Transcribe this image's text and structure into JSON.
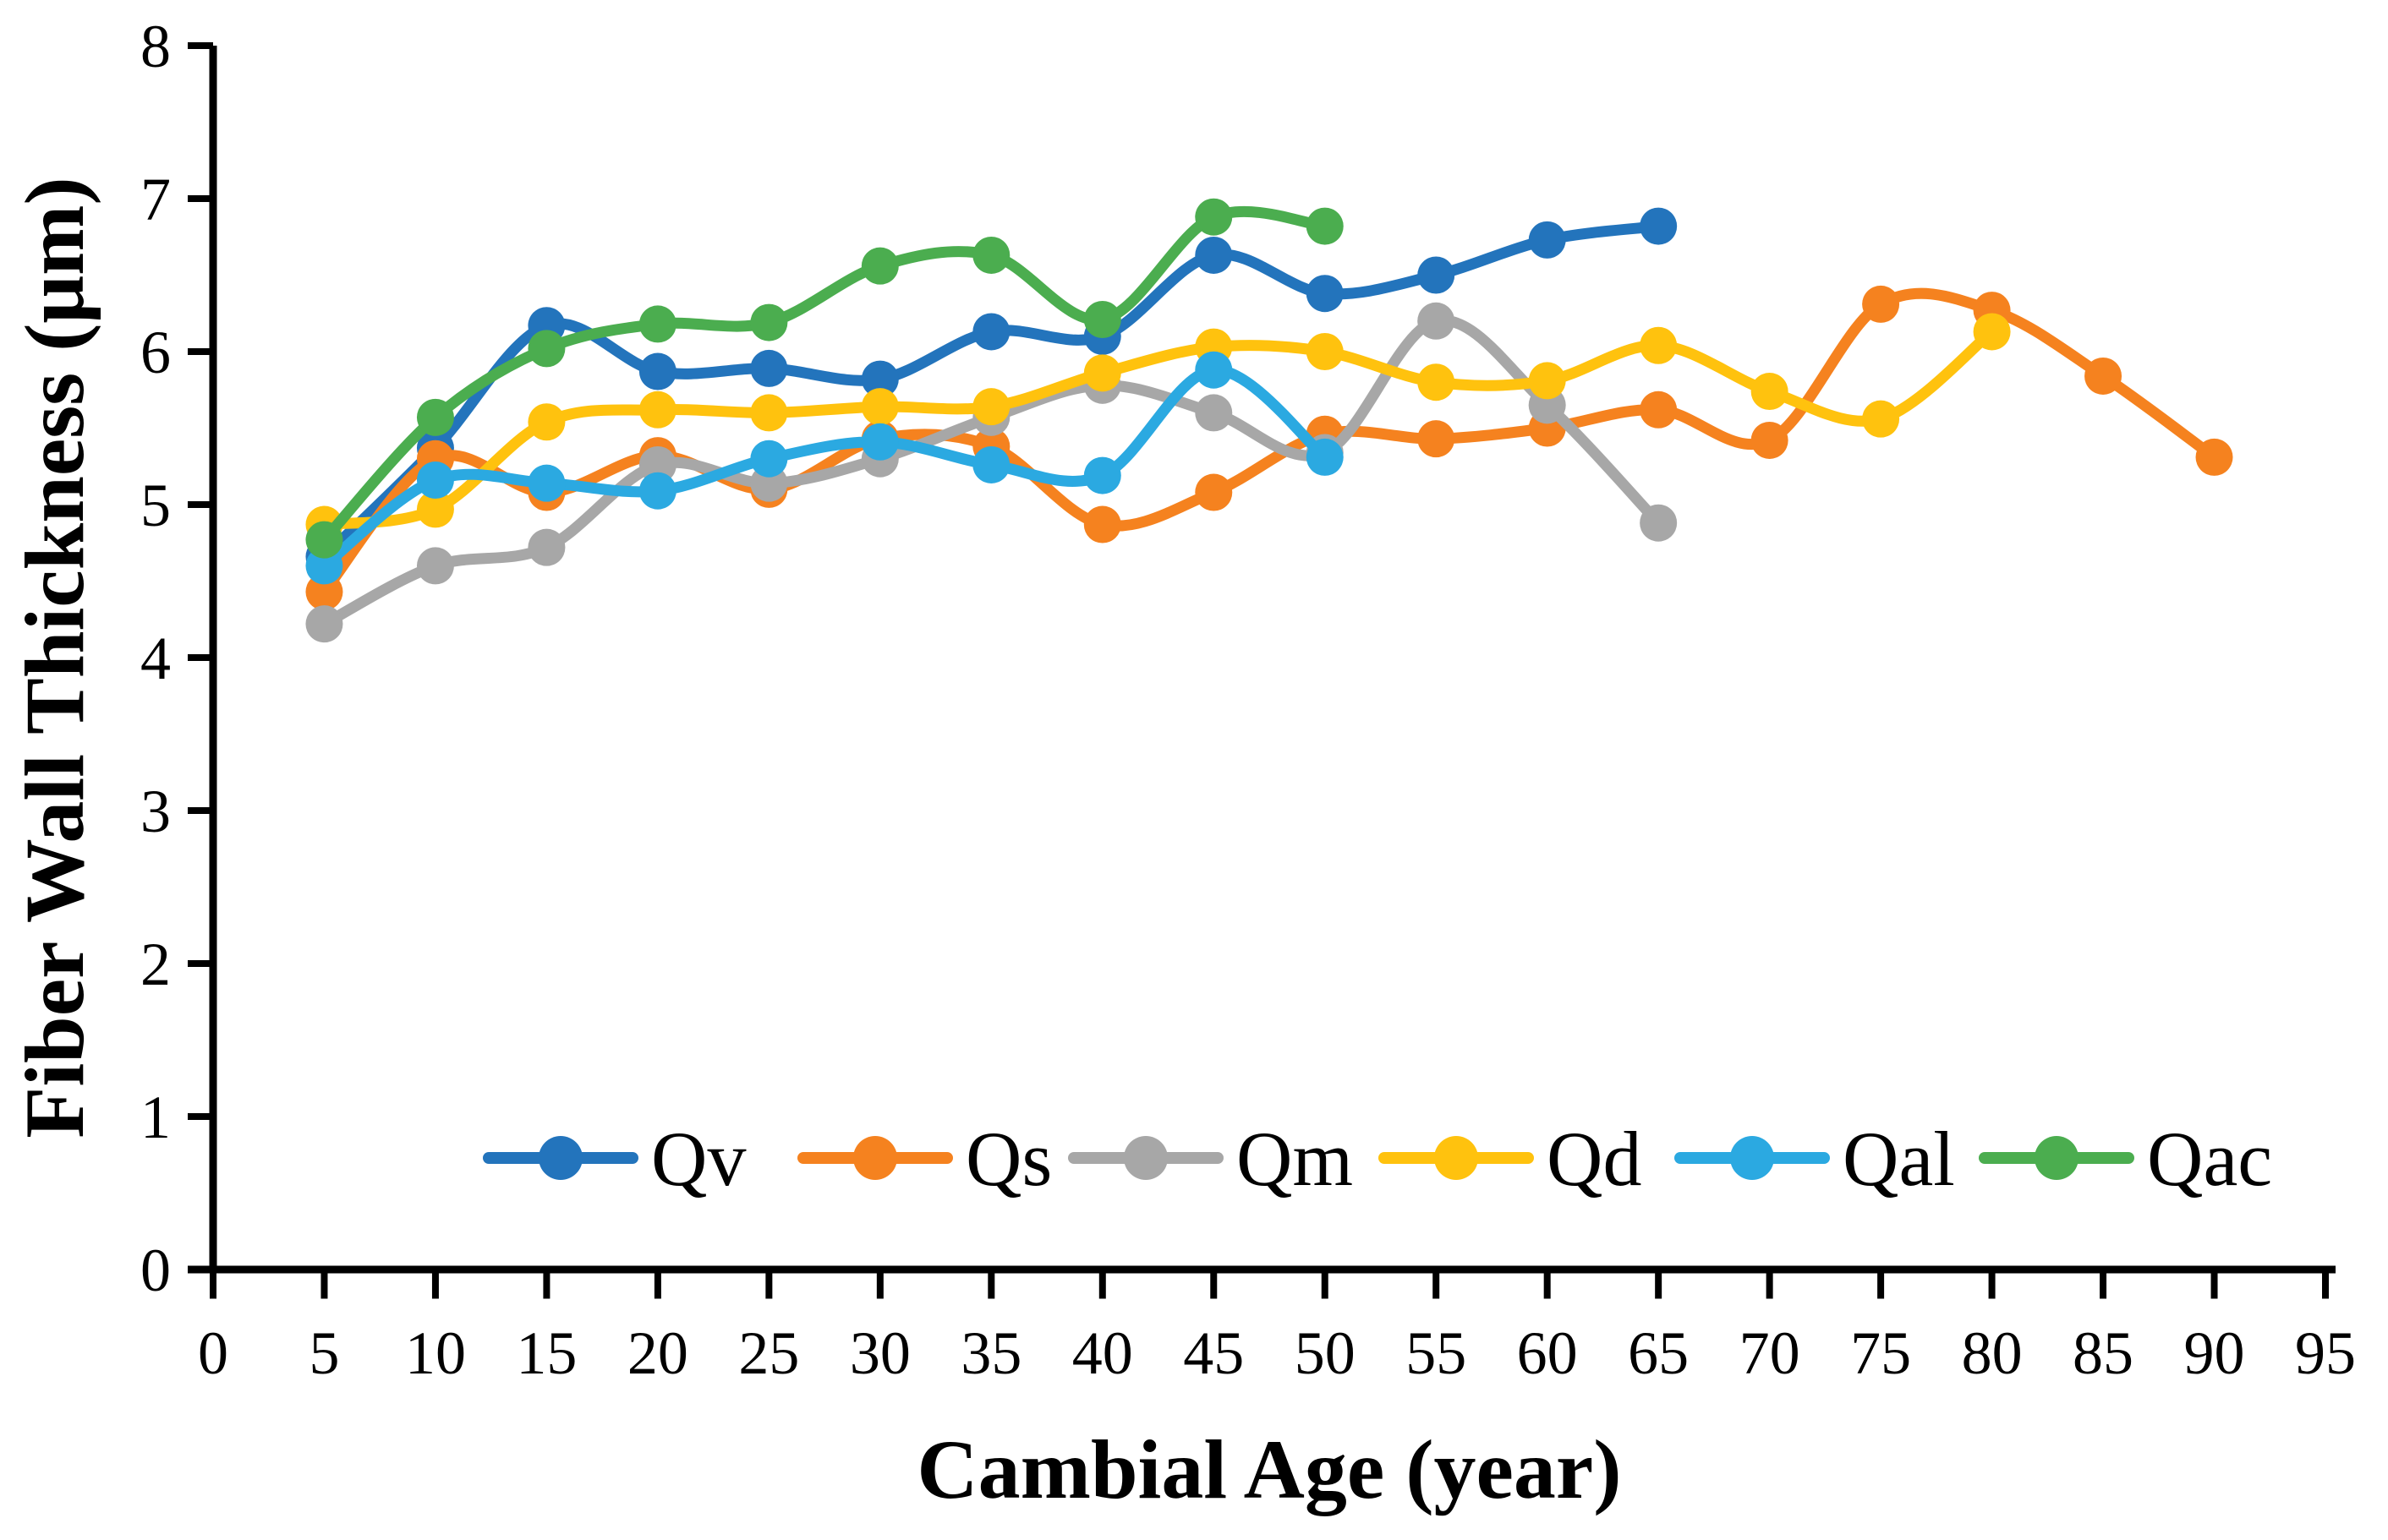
{
  "chart_data": {
    "type": "line",
    "title": "",
    "xlabel": "Cambial Age (year)",
    "ylabel": "Fiber Wall Thickness (μm)",
    "xlim": [
      0,
      95
    ],
    "xstep": 5,
    "ylim": [
      0,
      8
    ],
    "ystep": 1,
    "grid": false,
    "smoothed": true,
    "marker": "circle",
    "legend_position": "bottom-center-inside",
    "axis_color": "#000000",
    "background_color": "#ffffff",
    "series": [
      {
        "name": "Qv",
        "color": "#2374BC",
        "x": [
          5,
          10,
          15,
          20,
          25,
          30,
          35,
          40,
          45,
          50,
          55,
          60,
          65
        ],
        "values": [
          4.66,
          5.37,
          6.17,
          5.87,
          5.89,
          5.82,
          6.13,
          6.1,
          6.63,
          6.38,
          6.5,
          6.73,
          6.82
        ]
      },
      {
        "name": "Qs",
        "color": "#F5821F",
        "x": [
          5,
          10,
          15,
          20,
          25,
          30,
          35,
          40,
          45,
          50,
          55,
          60,
          65,
          70,
          75,
          80,
          85,
          90
        ],
        "values": [
          4.43,
          5.3,
          5.08,
          5.32,
          5.1,
          5.43,
          5.38,
          4.87,
          5.08,
          5.46,
          5.43,
          5.5,
          5.62,
          5.42,
          6.31,
          6.27,
          5.84,
          5.31
        ]
      },
      {
        "name": "Qm",
        "color": "#A7A7A7",
        "x": [
          5,
          10,
          15,
          20,
          25,
          30,
          35,
          40,
          45,
          50,
          55,
          60,
          65
        ],
        "values": [
          4.22,
          4.6,
          4.72,
          5.26,
          5.14,
          5.3,
          5.57,
          5.78,
          5.6,
          5.34,
          6.2,
          5.65,
          4.88
        ]
      },
      {
        "name": "Qd",
        "color": "#FFC20E",
        "x": [
          5,
          10,
          15,
          20,
          25,
          30,
          35,
          40,
          45,
          50,
          55,
          60,
          65,
          70,
          75,
          80
        ],
        "values": [
          4.87,
          4.97,
          5.54,
          5.62,
          5.6,
          5.64,
          5.64,
          5.86,
          6.03,
          6.0,
          5.8,
          5.81,
          6.04,
          5.74,
          5.56,
          6.13
        ]
      },
      {
        "name": "Qal",
        "color": "#2BA9E1",
        "x": [
          5,
          10,
          15,
          20,
          25,
          30,
          35,
          40,
          45,
          50
        ],
        "values": [
          4.6,
          5.16,
          5.14,
          5.09,
          5.3,
          5.41,
          5.26,
          5.19,
          5.88,
          5.31
        ]
      },
      {
        "name": "Qac",
        "color": "#4BAD4F",
        "x": [
          5,
          10,
          15,
          20,
          25,
          30,
          35,
          40,
          45,
          50
        ],
        "values": [
          4.77,
          5.57,
          6.02,
          6.18,
          6.19,
          6.56,
          6.63,
          6.21,
          6.88,
          6.82
        ]
      }
    ]
  }
}
